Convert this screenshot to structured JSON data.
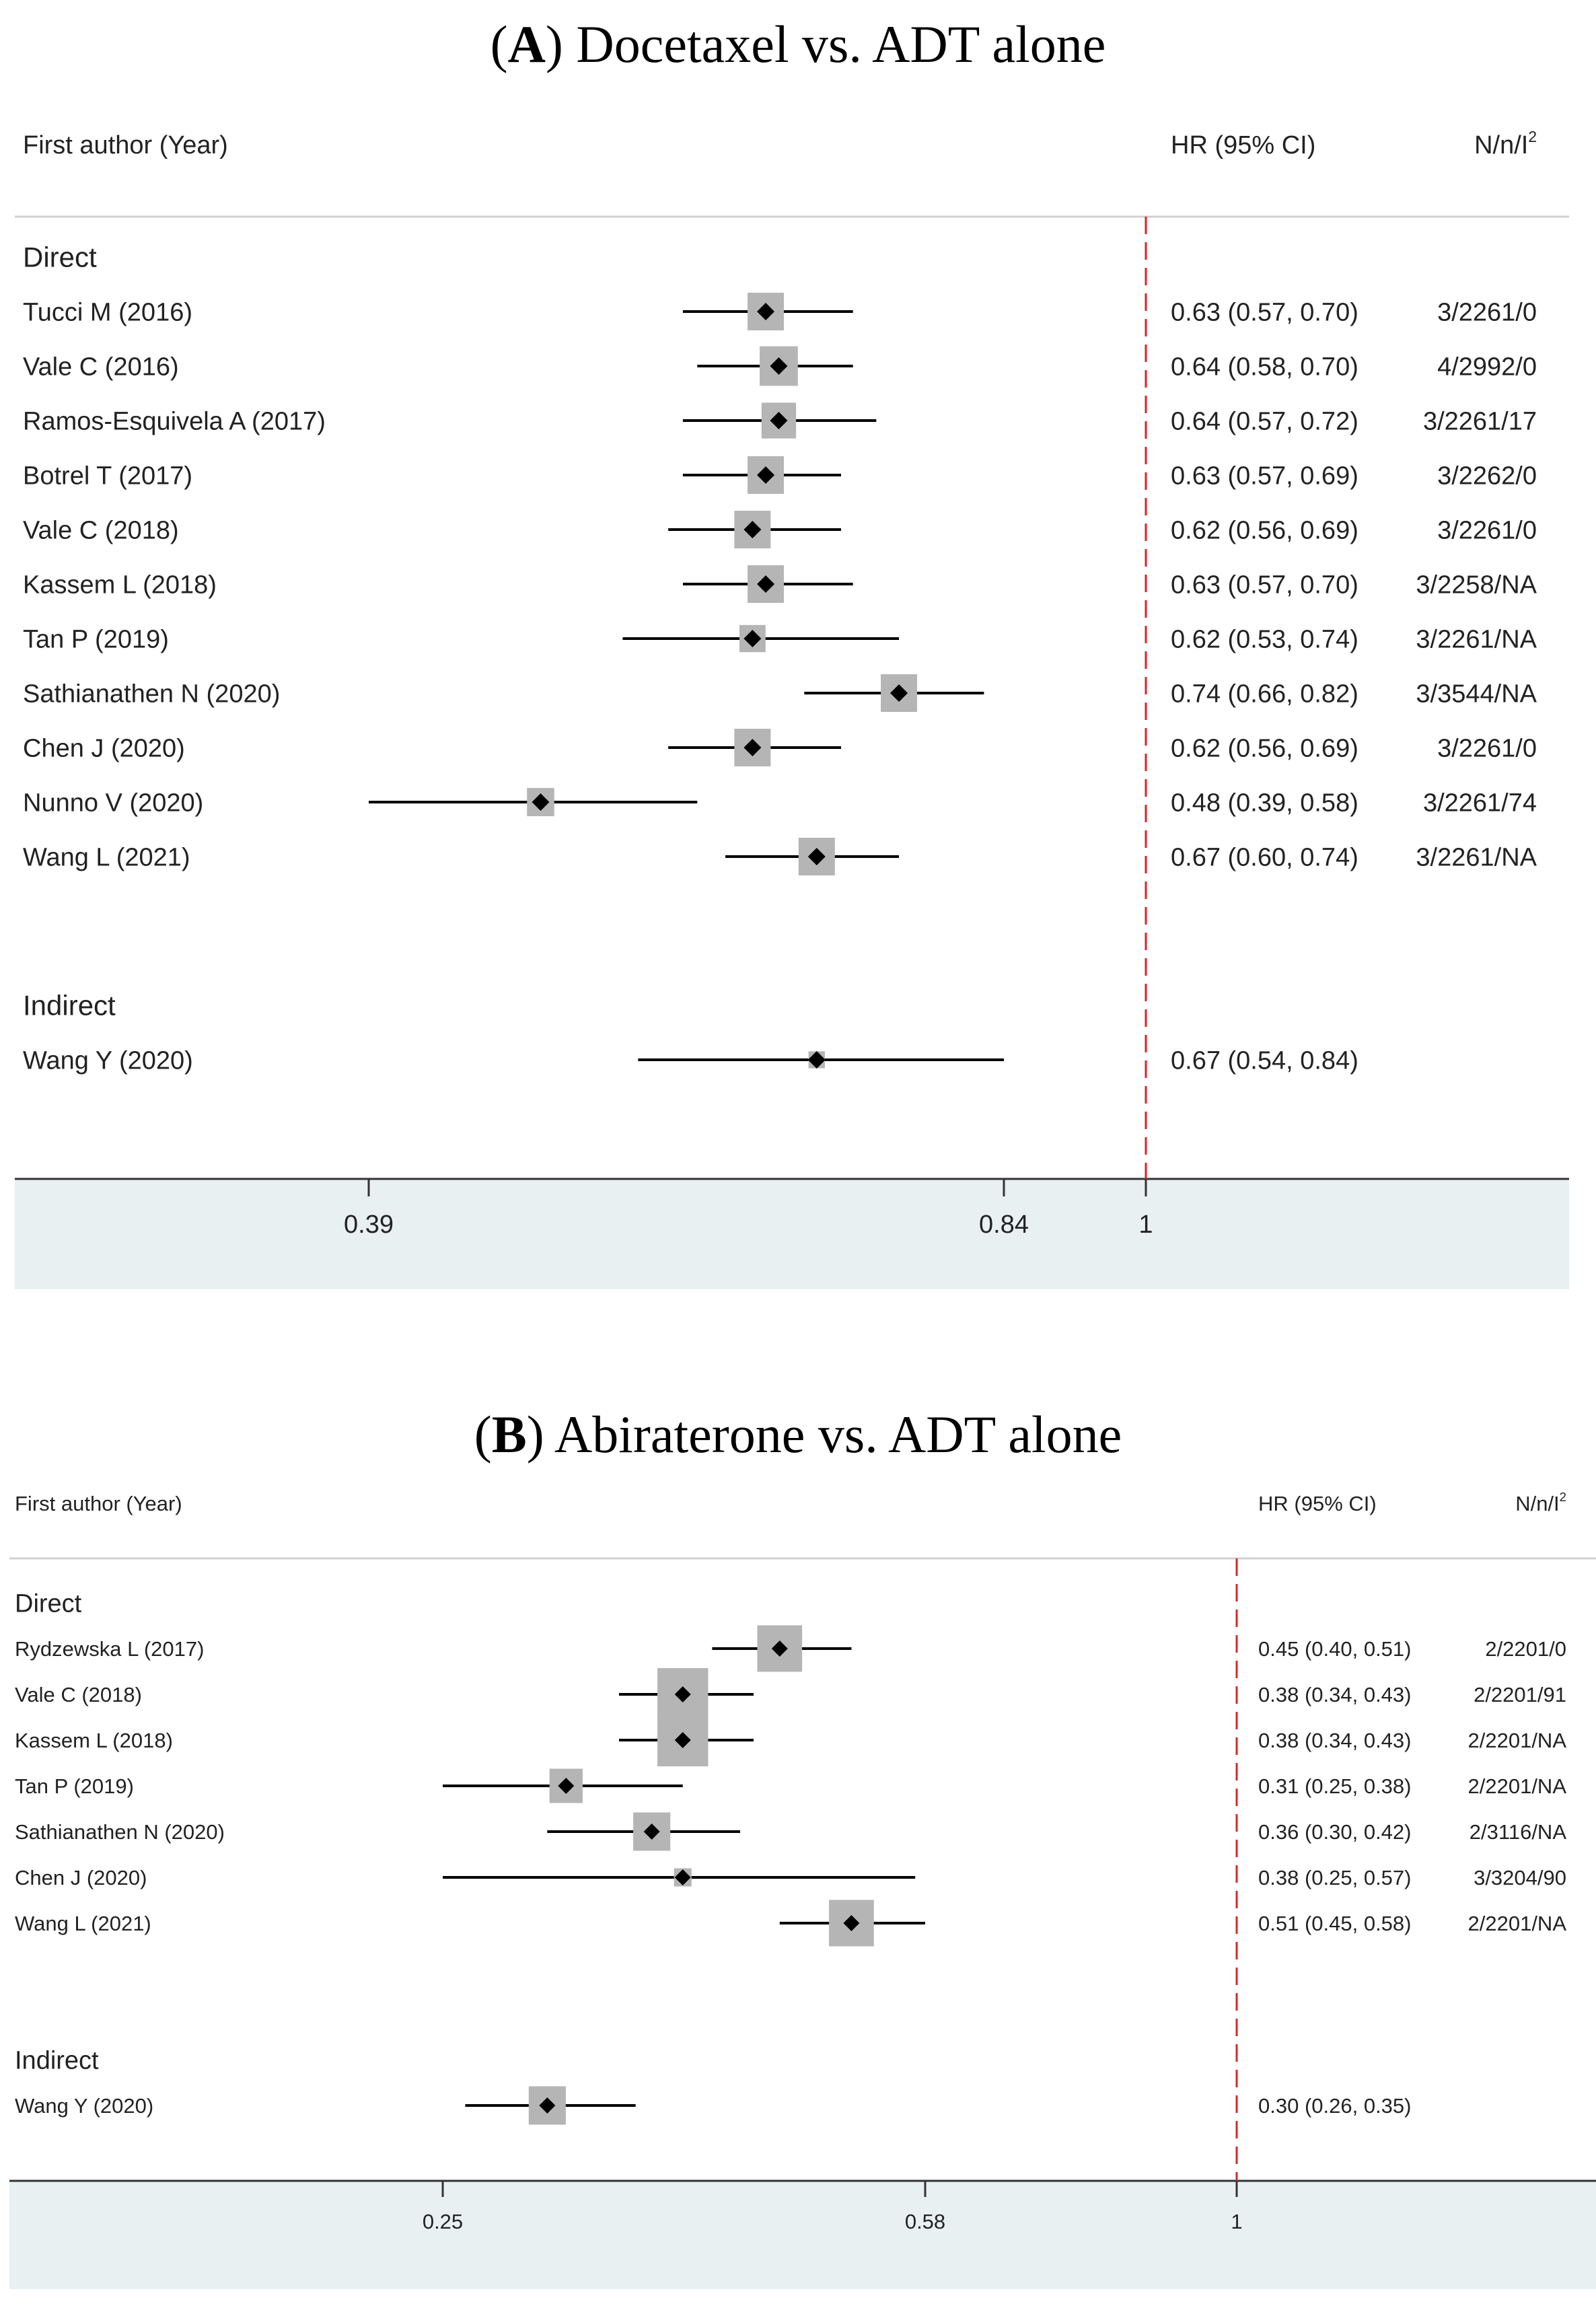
{
  "chart_data": [
    {
      "type": "forest",
      "title_letter": "A",
      "title_rest": "Docetaxel vs. ADT alone",
      "header": {
        "study": "First author (Year)",
        "hr": "HR (95% CI)",
        "stats": "N/n/I",
        "stats_sup": "2"
      },
      "xscale": "log",
      "xticks": [
        0.39,
        0.84,
        1
      ],
      "xtick_labels": [
        "0.39",
        "0.84",
        "1"
      ],
      "reference_line": 1,
      "colors": {
        "reference": "#d62728",
        "box": "#b5b5b5",
        "axis_band": "#e8f0f2"
      },
      "groups": [
        {
          "label": "Direct",
          "studies": [
            {
              "study": "Tucci M (2016)",
              "hr": 0.63,
              "lo": 0.57,
              "hi": 0.7,
              "hr_text": "0.63 (0.57, 0.70)",
              "stats": "3/2261/0"
            },
            {
              "study": "Vale C (2016)",
              "hr": 0.64,
              "lo": 0.58,
              "hi": 0.7,
              "hr_text": "0.64 (0.58, 0.70)",
              "stats": "4/2992/0"
            },
            {
              "study": "Ramos-Esquivela A (2017)",
              "hr": 0.64,
              "lo": 0.57,
              "hi": 0.72,
              "hr_text": "0.64 (0.57, 0.72)",
              "stats": "3/2261/17"
            },
            {
              "study": "Botrel T (2017)",
              "hr": 0.63,
              "lo": 0.57,
              "hi": 0.69,
              "hr_text": "0.63 (0.57, 0.69)",
              "stats": "3/2262/0"
            },
            {
              "study": "Vale C (2018)",
              "hr": 0.62,
              "lo": 0.56,
              "hi": 0.69,
              "hr_text": "0.62 (0.56, 0.69)",
              "stats": "3/2261/0"
            },
            {
              "study": "Kassem L (2018)",
              "hr": 0.63,
              "lo": 0.57,
              "hi": 0.7,
              "hr_text": "0.63 (0.57, 0.70)",
              "stats": "3/2258/NA"
            },
            {
              "study": "Tan P (2019)",
              "hr": 0.62,
              "lo": 0.53,
              "hi": 0.74,
              "hr_text": "0.62 (0.53, 0.74)",
              "stats": "3/2261/NA"
            },
            {
              "study": "Sathianathen N (2020)",
              "hr": 0.74,
              "lo": 0.66,
              "hi": 0.82,
              "hr_text": "0.74 (0.66, 0.82)",
              "stats": "3/3544/NA"
            },
            {
              "study": "Chen J (2020)",
              "hr": 0.62,
              "lo": 0.56,
              "hi": 0.69,
              "hr_text": "0.62 (0.56, 0.69)",
              "stats": "3/2261/0"
            },
            {
              "study": "Nunno V (2020)",
              "hr": 0.48,
              "lo": 0.39,
              "hi": 0.58,
              "hr_text": "0.48 (0.39, 0.58)",
              "stats": "3/2261/74"
            },
            {
              "study": "Wang L (2021)",
              "hr": 0.67,
              "lo": 0.6,
              "hi": 0.74,
              "hr_text": "0.67 (0.60, 0.74)",
              "stats": "3/2261/NA"
            }
          ]
        },
        {
          "label": "Indirect",
          "studies": [
            {
              "study": "Wang Y (2020)",
              "hr": 0.67,
              "lo": 0.54,
              "hi": 0.84,
              "hr_text": "0.67 (0.54, 0.84)",
              "stats": ""
            }
          ]
        }
      ]
    },
    {
      "type": "forest",
      "title_letter": "B",
      "title_rest": "Abiraterone vs. ADT alone",
      "header": {
        "study": "First author (Year)",
        "hr": "HR (95% CI)",
        "stats": "N/n/I",
        "stats_sup": "2"
      },
      "xscale": "log",
      "xticks": [
        0.25,
        0.58,
        1
      ],
      "xtick_labels": [
        "0.25",
        "0.58",
        "1"
      ],
      "reference_line": 1,
      "colors": {
        "reference": "#d62728",
        "box": "#b5b5b5",
        "axis_band": "#e8f0f2"
      },
      "groups": [
        {
          "label": "Direct",
          "studies": [
            {
              "study": "Rydzewska L (2017)",
              "hr": 0.45,
              "lo": 0.4,
              "hi": 0.51,
              "hr_text": "0.45 (0.40, 0.51)",
              "stats": "2/2201/0"
            },
            {
              "study": "Vale C (2018)",
              "hr": 0.38,
              "lo": 0.34,
              "hi": 0.43,
              "hr_text": "0.38 (0.34, 0.43)",
              "stats": "2/2201/91"
            },
            {
              "study": "Kassem L (2018)",
              "hr": 0.38,
              "lo": 0.34,
              "hi": 0.43,
              "hr_text": "0.38 (0.34, 0.43)",
              "stats": "2/2201/NA"
            },
            {
              "study": "Tan P (2019)",
              "hr": 0.31,
              "lo": 0.25,
              "hi": 0.38,
              "hr_text": "0.31 (0.25, 0.38)",
              "stats": "2/2201/NA"
            },
            {
              "study": "Sathianathen N (2020)",
              "hr": 0.36,
              "lo": 0.3,
              "hi": 0.42,
              "hr_text": "0.36 (0.30, 0.42)",
              "stats": "2/3116/NA"
            },
            {
              "study": "Chen J (2020)",
              "hr": 0.38,
              "lo": 0.25,
              "hi": 0.57,
              "hr_text": "0.38 (0.25, 0.57)",
              "stats": "3/3204/90"
            },
            {
              "study": "Wang L (2021)",
              "hr": 0.51,
              "lo": 0.45,
              "hi": 0.58,
              "hr_text": "0.51 (0.45, 0.58)",
              "stats": "2/2201/NA"
            }
          ]
        },
        {
          "label": "Indirect",
          "studies": [
            {
              "study": "Wang Y (2020)",
              "hr": 0.3,
              "lo": 0.26,
              "hi": 0.35,
              "hr_text": "0.30 (0.26, 0.35)",
              "stats": ""
            }
          ]
        }
      ]
    }
  ]
}
